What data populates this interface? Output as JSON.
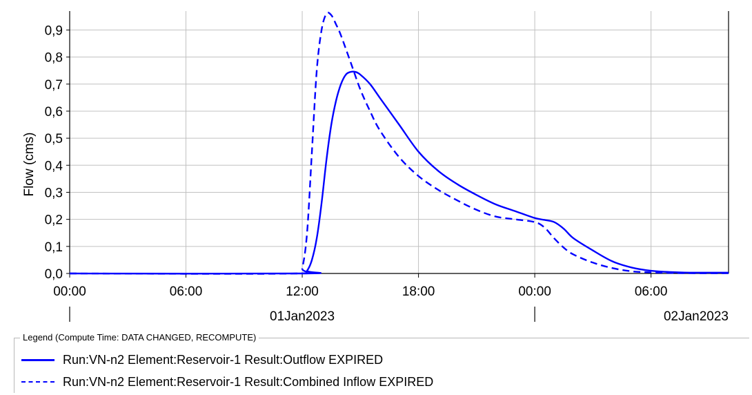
{
  "chart_data": {
    "type": "line",
    "ylabel": "Flow (cms)",
    "ylim": [
      0,
      0.97
    ],
    "yticks": [
      "0,0",
      "0,1",
      "0,2",
      "0,3",
      "0,4",
      "0,5",
      "0,6",
      "0,7",
      "0,8",
      "0,9"
    ],
    "ytick_values": [
      0,
      0.1,
      0.2,
      0.3,
      0.4,
      0.5,
      0.6,
      0.7,
      0.8,
      0.9
    ],
    "xlim": [
      "01Jan2023 00:00",
      "02Jan2023 10:00"
    ],
    "xticks": [
      "00:00",
      "06:00",
      "12:00",
      "18:00",
      "00:00",
      "06:00"
    ],
    "date_labels": [
      "01Jan2023",
      "02Jan2023"
    ],
    "grid": true,
    "series": [
      {
        "name": "Run:VN-n2 Element:Reservoir-1 Result:Outflow EXPIRED",
        "style": "solid",
        "color": "#0000ff",
        "x": [
          "01Jan2023 00:00",
          "01Jan2023 12:00",
          "01Jan2023 12:15",
          "01Jan2023 12:30",
          "01Jan2023 12:45",
          "01Jan2023 13:00",
          "01Jan2023 13:15",
          "01Jan2023 13:30",
          "01Jan2023 13:45",
          "01Jan2023 14:00",
          "01Jan2023 14:15",
          "01Jan2023 14:30",
          "01Jan2023 14:45",
          "01Jan2023 15:00",
          "01Jan2023 15:30",
          "01Jan2023 16:00",
          "01Jan2023 17:00",
          "01Jan2023 18:00",
          "01Jan2023 19:00",
          "01Jan2023 20:00",
          "01Jan2023 21:00",
          "01Jan2023 22:00",
          "01Jan2023 23:00",
          "02Jan2023 00:00",
          "02Jan2023 00:30",
          "02Jan2023 01:00",
          "02Jan2023 01:30",
          "02Jan2023 02:00",
          "02Jan2023 03:00",
          "02Jan2023 04:00",
          "02Jan2023 05:00",
          "02Jan2023 06:00",
          "02Jan2023 07:00",
          "02Jan2023 08:00",
          "02Jan2023 10:00"
        ],
        "y": [
          0,
          0,
          0.01,
          0.05,
          0.13,
          0.26,
          0.42,
          0.55,
          0.64,
          0.7,
          0.735,
          0.745,
          0.745,
          0.735,
          0.7,
          0.65,
          0.55,
          0.45,
          0.38,
          0.33,
          0.29,
          0.255,
          0.23,
          0.205,
          0.198,
          0.19,
          0.165,
          0.13,
          0.085,
          0.045,
          0.022,
          0.01,
          0.005,
          0.003,
          0.003
        ]
      },
      {
        "name": "Run:VN-n2 Element:Reservoir-1 Result:Combined Inflow EXPIRED",
        "style": "dashed",
        "color": "#0000ff",
        "x": [
          "01Jan2023 00:00",
          "01Jan2023 11:45",
          "01Jan2023 12:00",
          "01Jan2023 12:15",
          "01Jan2023 12:30",
          "01Jan2023 12:45",
          "01Jan2023 13:00",
          "01Jan2023 13:15",
          "01Jan2023 13:30",
          "01Jan2023 13:45",
          "01Jan2023 14:00",
          "01Jan2023 14:30",
          "01Jan2023 15:00",
          "01Jan2023 15:30",
          "01Jan2023 16:00",
          "01Jan2023 17:00",
          "01Jan2023 18:00",
          "01Jan2023 19:00",
          "01Jan2023 20:00",
          "01Jan2023 21:00",
          "01Jan2023 22:00",
          "01Jan2023 23:00",
          "02Jan2023 00:00",
          "02Jan2023 00:30",
          "02Jan2023 01:00",
          "02Jan2023 01:30",
          "02Jan2023 02:00",
          "02Jan2023 03:00",
          "02Jan2023 04:00",
          "02Jan2023 05:00",
          "02Jan2023 06:00",
          "02Jan2023 07:00",
          "02Jan2023 08:00",
          "02Jan2023 10:00"
        ],
        "y": [
          0,
          0,
          0.02,
          0.15,
          0.45,
          0.75,
          0.9,
          0.96,
          0.955,
          0.92,
          0.88,
          0.78,
          0.68,
          0.6,
          0.53,
          0.43,
          0.36,
          0.31,
          0.27,
          0.235,
          0.21,
          0.2,
          0.19,
          0.17,
          0.13,
          0.095,
          0.07,
          0.04,
          0.02,
          0.008,
          0.004,
          0.002,
          0.001,
          0.001
        ]
      }
    ]
  },
  "legend": {
    "title": "Legend (Compute Time: DATA CHANGED, RECOMPUTE)",
    "items": [
      {
        "label": "Run:VN-n2 Element:Reservoir-1 Result:Outflow EXPIRED",
        "style": "solid"
      },
      {
        "label": "Run:VN-n2 Element:Reservoir-1 Result:Combined Inflow EXPIRED",
        "style": "dashed"
      }
    ]
  },
  "colors": {
    "series": "#0000ff",
    "grid": "#c0c0c0",
    "axis": "#000000"
  }
}
